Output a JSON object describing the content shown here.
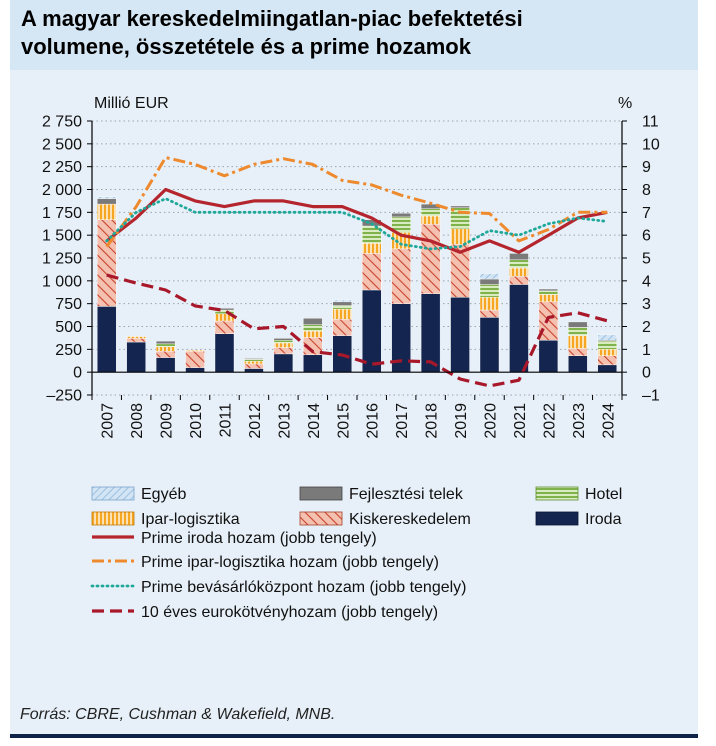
{
  "title": "A magyar kereskedelmiingatlan-piac befektetési volumene, összetétele és a prime hozamok",
  "title_lines": [
    "A magyar kereskedelmiingatlan-piac befektetési",
    "volumene, összetétele és a prime hozamok"
  ],
  "source": "Forrás: CBRE, Cushman & Wakefield, MNB.",
  "colors": {
    "iroda": "#14254f",
    "kiskereskedelem": "#f4c1b1",
    "kiskereskedelem_hatch": "#c8432d",
    "ipar": "#f5a623",
    "hotel": "#a9cf7d",
    "fejlesztesi": "#7a7a7a",
    "egyeb": "#b9d5ee",
    "prime_iroda": "#b5252d",
    "prime_ipar": "#ee8a2d",
    "prime_bev": "#1fa89a",
    "euro10": "#a8182a"
  },
  "chart_data": {
    "type": "bar",
    "stacked": true,
    "title": "A magyar kereskedelmiingatlan-piac befektetési volumene, összetétele és a prime hozamok",
    "ylabel_left": "Millió EUR",
    "ylabel_right": "%",
    "ylim_left": [
      -250,
      2750
    ],
    "ylim_right": [
      -1,
      11
    ],
    "yticks_left": [
      "2 750",
      "2 500",
      "2 250",
      "2 000",
      "1 750",
      "1 500",
      "1 250",
      "1 000",
      "750",
      "500",
      "250",
      "0",
      "–250"
    ],
    "yticks_left_values": [
      2750,
      2500,
      2250,
      2000,
      1750,
      1500,
      1250,
      1000,
      750,
      500,
      250,
      0,
      -250
    ],
    "yticks_right": [
      "11",
      "10",
      "9",
      "8",
      "7",
      "6",
      "5",
      "4",
      "3",
      "2",
      "1",
      "0",
      "–1"
    ],
    "yticks_right_values": [
      11,
      10,
      9,
      8,
      7,
      6,
      5,
      4,
      3,
      2,
      1,
      0,
      -1
    ],
    "grid": true,
    "legend": "bottom",
    "categories": [
      "2007",
      "2008",
      "2009",
      "2010",
      "2011",
      "2012",
      "2013",
      "2014",
      "2015",
      "2016",
      "2017",
      "2018",
      "2019",
      "2020",
      "2021",
      "2022",
      "2023",
      "2024"
    ],
    "series": [
      {
        "name": "Iroda",
        "key": "iroda",
        "axis": "left",
        "values": [
          720,
          330,
          160,
          50,
          420,
          40,
          200,
          190,
          400,
          900,
          750,
          860,
          820,
          600,
          960,
          350,
          180,
          80
        ]
      },
      {
        "name": "Kiskereskedelem",
        "key": "kiskereskedelem",
        "axis": "left",
        "values": [
          950,
          40,
          70,
          180,
          140,
          50,
          70,
          190,
          180,
          400,
          600,
          760,
          580,
          80,
          90,
          420,
          80,
          100
        ]
      },
      {
        "name": "Ipar-logisztika",
        "key": "ipar",
        "axis": "left",
        "values": [
          170,
          20,
          50,
          10,
          80,
          30,
          50,
          70,
          110,
          110,
          180,
          90,
          170,
          140,
          90,
          80,
          140,
          70
        ]
      },
      {
        "name": "Hotel",
        "key": "hotel",
        "axis": "left",
        "values": [
          0,
          0,
          30,
          0,
          40,
          20,
          30,
          70,
          40,
          190,
          170,
          80,
          230,
          140,
          90,
          40,
          90,
          90
        ]
      },
      {
        "name": "Fejlesztési telek",
        "key": "fejlesztesi",
        "axis": "left",
        "values": [
          60,
          0,
          30,
          0,
          20,
          10,
          20,
          70,
          40,
          70,
          40,
          50,
          20,
          60,
          70,
          20,
          60,
          10
        ]
      },
      {
        "name": "Egyéb",
        "key": "egyeb",
        "axis": "left",
        "values": [
          20,
          0,
          0,
          0,
          0,
          0,
          0,
          0,
          20,
          0,
          0,
          0,
          0,
          60,
          0,
          0,
          0,
          60
        ]
      },
      {
        "name": "Prime iroda hozam (jobb tengely)",
        "key": "prime_iroda",
        "axis": "right",
        "style": "solid",
        "values": [
          5.75,
          6.75,
          8.0,
          7.5,
          7.25,
          7.5,
          7.5,
          7.25,
          7.25,
          6.75,
          6.0,
          5.75,
          5.25,
          5.75,
          5.25,
          6.0,
          6.75,
          7.0
        ]
      },
      {
        "name": "Prime ipar-logisztika hozam (jobb tengely)",
        "key": "prime_ipar",
        "axis": "right",
        "style": "dashdot",
        "values": [
          5.5,
          7.25,
          9.4,
          9.1,
          8.6,
          9.1,
          9.35,
          9.1,
          8.4,
          8.2,
          7.75,
          7.4,
          7.0,
          6.95,
          5.75,
          6.25,
          7.0,
          7.0
        ]
      },
      {
        "name": "Prime bevásárlóközpont hozam (jobb tengely)",
        "key": "prime_bev",
        "axis": "right",
        "style": "dotted",
        "values": [
          5.75,
          7.0,
          7.6,
          7.0,
          7.0,
          7.0,
          7.0,
          7.0,
          7.0,
          6.5,
          5.6,
          5.4,
          5.5,
          6.2,
          6.0,
          6.5,
          6.75,
          6.6
        ]
      },
      {
        "name": "10 éves eurokötvényhozam (jobb tengely)",
        "key": "euro10",
        "axis": "right",
        "style": "dashed",
        "values": [
          4.25,
          3.9,
          3.6,
          2.9,
          2.7,
          1.9,
          2.0,
          0.9,
          0.75,
          0.35,
          0.5,
          0.45,
          -0.3,
          -0.6,
          -0.35,
          2.4,
          2.6,
          2.25
        ]
      }
    ],
    "legend_entries": [
      {
        "label": "Egyéb",
        "key": "egyeb",
        "kind": "box"
      },
      {
        "label": "Fejlesztési telek",
        "key": "fejlesztesi",
        "kind": "box"
      },
      {
        "label": "Hotel",
        "key": "hotel",
        "kind": "box"
      },
      {
        "label": "Ipar-logisztika",
        "key": "ipar",
        "kind": "box"
      },
      {
        "label": "Kiskereskedelem",
        "key": "kiskereskedelem",
        "kind": "box"
      },
      {
        "label": "Iroda",
        "key": "iroda",
        "kind": "box"
      },
      {
        "label": "Prime iroda hozam (jobb tengely)",
        "key": "prime_iroda",
        "kind": "line"
      },
      {
        "label": "Prime ipar-logisztika hozam (jobb tengely)",
        "key": "prime_ipar",
        "kind": "line"
      },
      {
        "label": "Prime bevásárlóközpont hozam (jobb tengely)",
        "key": "prime_bev",
        "kind": "line"
      },
      {
        "label": "10 éves eurokötvényhozam (jobb tengely)",
        "key": "euro10",
        "kind": "line"
      }
    ]
  }
}
